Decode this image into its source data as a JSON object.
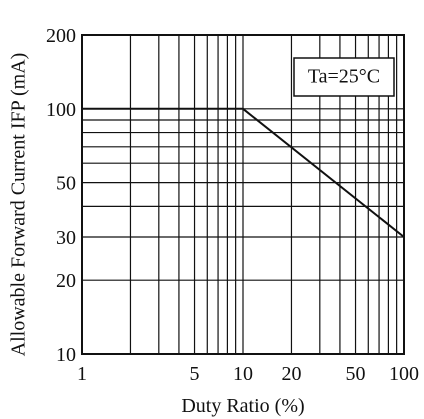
{
  "chart_data": {
    "type": "line",
    "title": "",
    "xlabel": "Duty Ratio (%)",
    "ylabel": "Allowable Forward Current IFP (mA)",
    "x_scale": "log",
    "y_scale": "log",
    "xlim": [
      1,
      100
    ],
    "ylim": [
      10,
      200
    ],
    "grid": true,
    "x_ticks": [
      1,
      5,
      10,
      20,
      50,
      100
    ],
    "x_tick_labels": [
      "1",
      "5",
      "10",
      "20",
      "50",
      "100"
    ],
    "y_ticks": [
      10,
      20,
      30,
      50,
      100,
      200
    ],
    "y_tick_labels": [
      "10",
      "20",
      "30",
      "50",
      "100",
      "200"
    ],
    "annotation": "Ta=25°C",
    "legend": "none",
    "series": [
      {
        "x": [
          1,
          10,
          100
        ],
        "y": [
          100,
          100,
          30
        ],
        "color": "#111111"
      }
    ]
  }
}
